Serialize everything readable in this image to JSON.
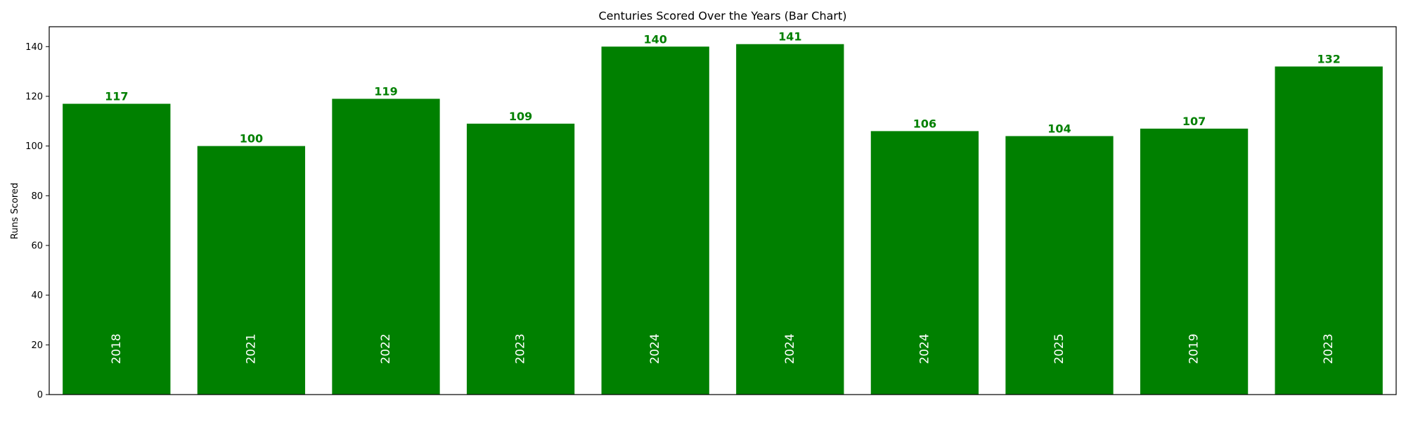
{
  "chart_data": {
    "type": "bar",
    "title": "Centuries Scored Over the Years (Bar Chart)",
    "xlabel": "",
    "ylabel": "Runs Scored",
    "categories": [
      "2018",
      "2021",
      "2022",
      "2023",
      "2024",
      "2024",
      "2024",
      "2025",
      "2019",
      "2023"
    ],
    "values": [
      117,
      100,
      119,
      109,
      140,
      141,
      106,
      104,
      107,
      132
    ],
    "ylim": [
      0,
      148
    ],
    "yticks": [
      0,
      20,
      40,
      60,
      80,
      100,
      120,
      140
    ],
    "bar_color": "#008000",
    "value_label_color": "#008000",
    "category_label_color": "#ffffff",
    "grid": false,
    "legend": "none"
  }
}
